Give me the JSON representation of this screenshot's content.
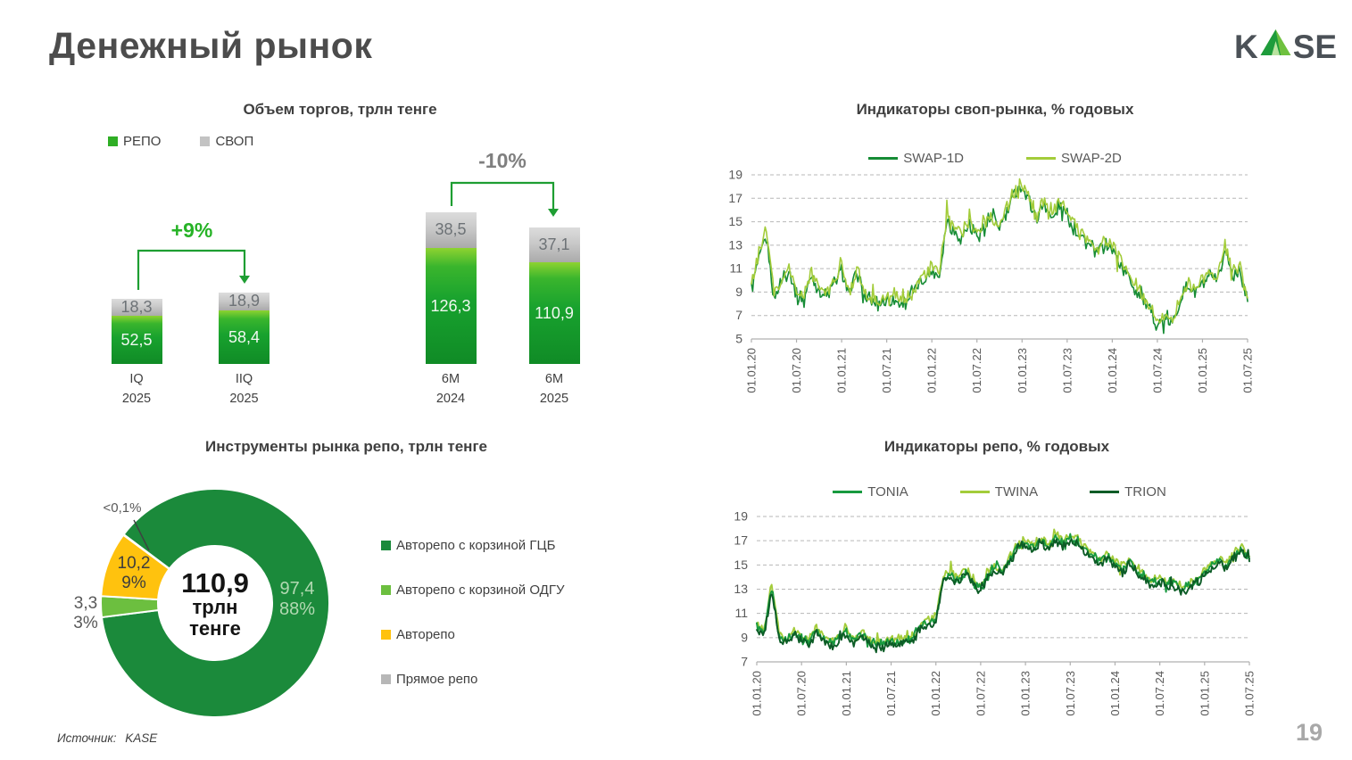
{
  "page": {
    "title": "Денежный рынок",
    "logo": {
      "k": "K",
      "se": "SE",
      "triangle_dark": "#1e9c3c",
      "triangle_light": "#6fc13f"
    },
    "source_label": "Источник:",
    "source_value": "KASE",
    "page_number": "19"
  },
  "colors": {
    "bar_green_top": "#8ed331",
    "bar_green_mid": "#18a22e",
    "bar_green_bottom": "#108b26",
    "bar_gray_top": "#dcdcdc",
    "bar_gray_bottom": "#aaaaaa",
    "grid": "#b7b7b7",
    "axis": "#b0b0b0",
    "axis_text": "#595959"
  },
  "chart_data": [
    {
      "id": "volume_bars",
      "type": "bar",
      "title": "Объем торгов, трлн тенге",
      "legend": [
        {
          "name": "РЕПО",
          "color": "#2fae25"
        },
        {
          "name": "СВОП",
          "color": "#c3c3c3"
        }
      ],
      "categories": [
        [
          "IQ",
          "2025"
        ],
        [
          "IIQ",
          "2025"
        ],
        [
          "6M",
          "2024"
        ],
        [
          "6M",
          "2025"
        ]
      ],
      "series": [
        {
          "name": "РЕПО",
          "values": [
            52.5,
            58.4,
            126.3,
            110.9
          ],
          "labels": [
            "52,5",
            "58,4",
            "126,3",
            "110,9"
          ]
        },
        {
          "name": "СВОП",
          "values": [
            18.3,
            18.9,
            38.5,
            37.1
          ],
          "labels": [
            "18,3",
            "18,9",
            "38,5",
            "37,1"
          ]
        }
      ],
      "annotations": [
        {
          "text": "+9%",
          "color": "#27b327",
          "from": 0,
          "to": 1
        },
        {
          "text": "-10%",
          "color": "#7f7f7f",
          "from": 2,
          "to": 3
        }
      ]
    },
    {
      "id": "swap_lines",
      "type": "line",
      "title": "Индикаторы своп-рынка, % годовых",
      "ylim": [
        5,
        19
      ],
      "y_ticks": [
        19,
        17,
        15,
        13,
        11,
        9,
        7,
        5
      ],
      "x_ticks": [
        "01.01.20",
        "01.07.20",
        "01.01.21",
        "01.07.21",
        "01.01.22",
        "01.07.22",
        "01.01.23",
        "01.07.23",
        "01.01.24",
        "01.07.24",
        "01.01.25",
        "01.07.25"
      ],
      "grid": "dashed",
      "legend_position": "top",
      "noise": 0.85,
      "series": [
        {
          "name": "SWAP-1D",
          "color": "#168c35",
          "monthly_values": [
            9.2,
            11.8,
            13.6,
            8.4,
            9.9,
            10.9,
            8.7,
            8.4,
            10.5,
            9.1,
            8.6,
            9.7,
            10.9,
            8.7,
            10.8,
            8.5,
            8.1,
            7.9,
            8.2,
            8.3,
            8.0,
            8.5,
            9.4,
            10.1,
            10.8,
            10.4,
            15.2,
            14.1,
            13.7,
            14.9,
            13.8,
            14.7,
            15.1,
            14.5,
            15.8,
            17.3,
            18.0,
            16.5,
            15.3,
            16.7,
            15.1,
            16.3,
            15.7,
            14.3,
            13.7,
            12.9,
            12.3,
            13.1,
            12.7,
            11.5,
            10.5,
            9.3,
            8.5,
            7.4,
            6.3,
            6.6,
            6.2,
            8.3,
            9.5,
            9.1,
            9.7,
            10.3,
            9.9,
            12.6,
            10.5,
            10.9,
            8.2
          ]
        },
        {
          "name": "SWAP-2D",
          "color": "#a3cc3a",
          "monthly_values": [
            9.6,
            12.4,
            14.2,
            8.8,
            10.2,
            11.2,
            9.0,
            8.7,
            10.8,
            9.4,
            8.9,
            10.0,
            11.2,
            9.0,
            11.1,
            8.8,
            8.4,
            8.2,
            8.5,
            8.6,
            8.3,
            8.8,
            9.7,
            10.4,
            11.1,
            10.7,
            15.5,
            14.4,
            14.0,
            15.2,
            14.1,
            15.0,
            15.4,
            14.8,
            16.1,
            17.6,
            18.3,
            16.8,
            15.6,
            17.0,
            15.4,
            16.6,
            16.0,
            14.6,
            14.0,
            13.2,
            12.6,
            13.4,
            13.0,
            11.8,
            10.8,
            9.6,
            8.8,
            7.7,
            6.6,
            6.9,
            6.5,
            8.6,
            9.8,
            9.4,
            10.0,
            10.6,
            10.2,
            12.9,
            10.8,
            11.2,
            8.5
          ]
        }
      ],
      "x_range": [
        "01.01.20",
        "01.07.25"
      ]
    },
    {
      "id": "repo_instruments",
      "type": "pie",
      "title": "Инструменты рынка репо, трлн тенге",
      "center_value": "110,9",
      "center_unit_1": "трлн",
      "center_unit_2": "тенге",
      "slices": [
        {
          "label": "Авторепо с корзиной ГЦБ",
          "value": 97.4,
          "pct": 88,
          "color": "#1b8a3b",
          "value_label": "97,4",
          "pct_label": "88%"
        },
        {
          "label": "Авторепо с корзиной ОДГУ",
          "value": 3.3,
          "pct": 3,
          "color": "#6cbf3f",
          "value_label": "3,3",
          "pct_label": "3%"
        },
        {
          "label": "Авторепо",
          "value": 10.2,
          "pct": 9,
          "color": "#ffc20e",
          "value_label": "10,2",
          "pct_label": "9%"
        },
        {
          "label": "Прямое репо",
          "value": 0.1,
          "pct": 0.1,
          "color": "#b7b7b7",
          "value_label": "<0,1%",
          "pct_label": ""
        }
      ]
    },
    {
      "id": "repo_lines",
      "type": "line",
      "title": "Индикаторы репо, % годовых",
      "ylim": [
        7,
        19
      ],
      "y_ticks": [
        19,
        17,
        15,
        13,
        11,
        9,
        7
      ],
      "x_ticks": [
        "01.01.20",
        "01.07.20",
        "01.01.21",
        "01.07.21",
        "01.01.22",
        "01.07.22",
        "01.01.23",
        "01.07.23",
        "01.01.24",
        "01.07.24",
        "01.01.25",
        "01.07.25"
      ],
      "grid": "dashed",
      "legend_position": "top",
      "noise": 0.5,
      "series": [
        {
          "name": "TONIA",
          "color": "#179a3f",
          "monthly_values": [
            9.9,
            9.3,
            13.1,
            9.1,
            8.7,
            9.5,
            8.9,
            8.7,
            9.7,
            8.9,
            8.5,
            8.9,
            9.5,
            8.7,
            9.3,
            8.6,
            8.4,
            8.5,
            8.7,
            8.6,
            8.8,
            9.1,
            9.9,
            10.3,
            10.5,
            13.9,
            14.3,
            13.7,
            14.5,
            13.5,
            13.1,
            14.3,
            14.7,
            14.5,
            15.5,
            16.5,
            16.9,
            16.3,
            17.1,
            16.5,
            17.3,
            16.7,
            17.3,
            16.9,
            16.3,
            15.7,
            15.3,
            15.7,
            15.1,
            14.7,
            15.3,
            14.5,
            13.9,
            13.5,
            13.9,
            13.3,
            13.5,
            13.1,
            13.3,
            13.7,
            14.3,
            14.9,
            15.3,
            14.9,
            15.9,
            16.3,
            15.5
          ]
        },
        {
          "name": "TWINA",
          "color": "#a3cc3a",
          "monthly_values": [
            10.1,
            9.6,
            13.4,
            9.3,
            8.9,
            9.7,
            9.1,
            8.9,
            9.9,
            9.1,
            8.7,
            9.1,
            9.7,
            8.9,
            9.5,
            8.8,
            8.6,
            8.7,
            8.9,
            8.8,
            9.0,
            9.3,
            10.1,
            10.5,
            10.7,
            14.1,
            14.5,
            13.9,
            14.7,
            13.7,
            13.3,
            14.5,
            14.9,
            14.7,
            15.7,
            16.7,
            17.1,
            16.5,
            17.3,
            16.7,
            17.5,
            16.9,
            17.5,
            17.1,
            16.5,
            15.9,
            15.5,
            15.9,
            15.3,
            14.9,
            15.5,
            14.7,
            14.1,
            13.7,
            14.1,
            13.5,
            13.7,
            13.3,
            13.5,
            13.9,
            14.5,
            15.1,
            15.5,
            15.1,
            16.1,
            16.5,
            15.7
          ]
        },
        {
          "name": "TRION",
          "color": "#0c5c26",
          "monthly_values": [
            9.7,
            9.1,
            12.9,
            8.9,
            8.5,
            9.3,
            8.7,
            8.5,
            9.5,
            8.7,
            8.3,
            8.7,
            9.3,
            8.5,
            9.1,
            8.4,
            8.2,
            8.3,
            8.5,
            8.4,
            8.6,
            8.9,
            9.7,
            10.1,
            10.3,
            13.7,
            14.1,
            13.5,
            14.3,
            13.3,
            12.9,
            14.1,
            14.5,
            14.3,
            15.3,
            16.3,
            16.7,
            16.1,
            16.9,
            16.3,
            17.1,
            16.5,
            17.1,
            16.7,
            16.1,
            15.5,
            15.1,
            15.5,
            14.9,
            14.5,
            15.1,
            14.3,
            13.7,
            13.3,
            13.7,
            13.1,
            13.3,
            12.9,
            13.1,
            13.5,
            14.1,
            14.7,
            15.1,
            14.7,
            15.7,
            16.1,
            15.3
          ]
        }
      ],
      "x_range": [
        "01.01.20",
        "01.07.25"
      ]
    }
  ]
}
